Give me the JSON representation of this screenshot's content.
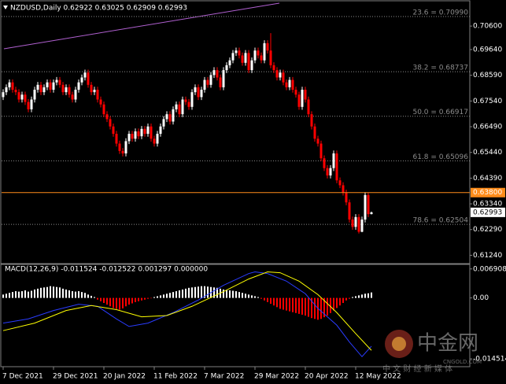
{
  "chart_data": [
    {
      "type": "candlestick",
      "title": "NZDUSD,Daily 0.62922 0.63025 0.62909 0.62993",
      "categories": [
        "7 Dec 2021",
        null,
        null,
        null,
        null,
        null,
        null,
        null,
        null,
        null,
        null,
        null,
        null,
        null,
        null,
        null,
        "29 Dec 2021",
        null,
        null,
        null,
        null,
        null,
        null,
        null,
        null,
        null,
        null,
        null,
        null,
        null,
        null,
        null,
        "20 Jan 2022",
        null,
        null,
        null,
        null,
        null,
        null,
        null,
        null,
        null,
        null,
        null,
        null,
        null,
        null,
        null,
        "11 Feb 2022",
        null,
        null,
        null,
        null,
        null,
        null,
        null,
        null,
        null,
        null,
        null,
        null,
        null,
        null,
        null,
        "7 Mar 2022",
        null,
        null,
        null,
        null,
        null,
        null,
        null,
        null,
        null,
        null,
        null,
        null,
        null,
        null,
        null,
        "29 Mar 2022",
        null,
        null,
        null,
        null,
        null,
        null,
        null,
        null,
        null,
        null,
        null,
        null,
        null,
        null,
        null,
        "20 Apr 2022",
        null,
        null,
        null,
        null,
        null,
        null,
        null,
        null,
        null,
        null,
        null,
        null,
        null,
        null,
        null,
        "12 May 2022",
        null,
        null,
        null,
        null,
        null
      ],
      "open": [
        0.677,
        0.679,
        0.681,
        0.683,
        0.68,
        0.679,
        0.676,
        0.678,
        0.675,
        0.672,
        0.676,
        0.68,
        0.682,
        0.679,
        0.681,
        0.683,
        0.68,
        0.683,
        0.684,
        0.682,
        0.679,
        0.681,
        0.678,
        0.676,
        0.68,
        0.683,
        0.685,
        0.687,
        0.682,
        0.679,
        0.68,
        0.676,
        0.674,
        0.67,
        0.668,
        0.665,
        0.662,
        0.658,
        0.655,
        0.654,
        0.659,
        0.662,
        0.66,
        0.663,
        0.661,
        0.664,
        0.662,
        0.665,
        0.66,
        0.658,
        0.662,
        0.665,
        0.668,
        0.67,
        0.667,
        0.672,
        0.674,
        0.67,
        0.676,
        0.675,
        0.673,
        0.679,
        0.681,
        0.677,
        0.68,
        0.684,
        0.682,
        0.686,
        0.688,
        0.685,
        0.681,
        0.688,
        0.69,
        0.692,
        0.695,
        0.696,
        0.694,
        0.691,
        0.695,
        0.688,
        0.692,
        0.696,
        0.694,
        0.692,
        0.699,
        0.696,
        0.69,
        0.688,
        0.685,
        0.687,
        0.683,
        0.681,
        0.684,
        0.68,
        0.678,
        0.673,
        0.68,
        0.676,
        0.67,
        0.665,
        0.66,
        0.658,
        0.652,
        0.648,
        0.645,
        0.648,
        0.654,
        0.643,
        0.641,
        0.638,
        0.634,
        0.627,
        0.624,
        0.628,
        0.622,
        0.627,
        0.637,
        0.62922
      ],
      "high": [
        0.6802,
        0.6822,
        0.6842,
        0.6842,
        0.6812,
        0.6802,
        0.6792,
        0.6792,
        0.6762,
        0.6772,
        0.6812,
        0.6832,
        0.6832,
        0.6822,
        0.6842,
        0.6842,
        0.6842,
        0.6852,
        0.6852,
        0.6832,
        0.6822,
        0.6822,
        0.6792,
        0.6812,
        0.6842,
        0.6862,
        0.6882,
        0.6882,
        0.6832,
        0.6812,
        0.6812,
        0.6772,
        0.6752,
        0.6712,
        0.6692,
        0.6662,
        0.6632,
        0.6592,
        0.6562,
        0.6602,
        0.6632,
        0.6632,
        0.6642,
        0.6642,
        0.6652,
        0.6652,
        0.6662,
        0.6662,
        0.6612,
        0.6632,
        0.6662,
        0.6692,
        0.6712,
        0.6712,
        0.6732,
        0.6752,
        0.6752,
        0.6772,
        0.6772,
        0.6762,
        0.6802,
        0.6822,
        0.6822,
        0.6812,
        0.6852,
        0.6852,
        0.6872,
        0.6892,
        0.6892,
        0.6862,
        0.6892,
        0.6912,
        0.6932,
        0.6962,
        0.6972,
        0.6972,
        0.6952,
        0.6962,
        0.6962,
        0.6932,
        0.6972,
        0.6972,
        0.6952,
        0.7002,
        0.7002,
        0.7031,
        0.6912,
        0.6892,
        0.6882,
        0.6882,
        0.6842,
        0.6852,
        0.6852,
        0.6812,
        0.6792,
        0.6812,
        0.6812,
        0.6772,
        0.6712,
        0.6662,
        0.6612,
        0.6592,
        0.6532,
        0.6492,
        0.6492,
        0.6552,
        0.6552,
        0.6442,
        0.6422,
        0.6392,
        0.6352,
        0.6282,
        0.6292,
        0.6292,
        0.6282,
        0.6382,
        0.638,
        0.63025
      ],
      "low": [
        0.6758,
        0.6778,
        0.6798,
        0.6788,
        0.6778,
        0.6748,
        0.6748,
        0.6738,
        0.6708,
        0.6708,
        0.6748,
        0.6788,
        0.6778,
        0.6778,
        0.6798,
        0.6788,
        0.6788,
        0.6818,
        0.6808,
        0.6778,
        0.6778,
        0.6768,
        0.6748,
        0.6748,
        0.6788,
        0.6818,
        0.6838,
        0.6808,
        0.6778,
        0.6778,
        0.6748,
        0.6728,
        0.6688,
        0.6668,
        0.6638,
        0.6608,
        0.6568,
        0.6538,
        0.6528,
        0.6528,
        0.6578,
        0.6588,
        0.6588,
        0.6598,
        0.6598,
        0.6608,
        0.6608,
        0.6588,
        0.6568,
        0.6568,
        0.6608,
        0.6638,
        0.6668,
        0.6658,
        0.6658,
        0.6708,
        0.6688,
        0.6688,
        0.6738,
        0.6718,
        0.6718,
        0.6778,
        0.6758,
        0.6758,
        0.6788,
        0.6808,
        0.6808,
        0.6848,
        0.6838,
        0.6798,
        0.6798,
        0.6868,
        0.6888,
        0.6908,
        0.6938,
        0.6928,
        0.6898,
        0.6898,
        0.6868,
        0.6868,
        0.6908,
        0.6928,
        0.6908,
        0.6908,
        0.6948,
        0.6888,
        0.6868,
        0.6838,
        0.6838,
        0.6818,
        0.6798,
        0.6798,
        0.6788,
        0.6768,
        0.6718,
        0.6718,
        0.6748,
        0.6688,
        0.6638,
        0.6588,
        0.6568,
        0.6508,
        0.6468,
        0.6438,
        0.6438,
        0.6468,
        0.6418,
        0.6398,
        0.6368,
        0.6328,
        0.6258,
        0.6228,
        0.6228,
        0.6213,
        0.6218,
        0.6258,
        0.628,
        0.62909
      ],
      "close": [
        0.679,
        0.681,
        0.683,
        0.68,
        0.679,
        0.676,
        0.678,
        0.675,
        0.672,
        0.676,
        0.68,
        0.682,
        0.679,
        0.681,
        0.683,
        0.68,
        0.683,
        0.684,
        0.682,
        0.679,
        0.681,
        0.678,
        0.676,
        0.68,
        0.683,
        0.685,
        0.687,
        0.682,
        0.679,
        0.68,
        0.676,
        0.674,
        0.67,
        0.668,
        0.665,
        0.662,
        0.658,
        0.655,
        0.654,
        0.659,
        0.662,
        0.66,
        0.663,
        0.661,
        0.664,
        0.662,
        0.665,
        0.66,
        0.658,
        0.662,
        0.665,
        0.668,
        0.67,
        0.667,
        0.672,
        0.674,
        0.67,
        0.676,
        0.675,
        0.673,
        0.679,
        0.681,
        0.677,
        0.68,
        0.684,
        0.682,
        0.686,
        0.688,
        0.685,
        0.681,
        0.688,
        0.69,
        0.692,
        0.695,
        0.696,
        0.694,
        0.691,
        0.695,
        0.688,
        0.692,
        0.696,
        0.694,
        0.692,
        0.699,
        0.696,
        0.69,
        0.688,
        0.685,
        0.687,
        0.683,
        0.681,
        0.684,
        0.68,
        0.678,
        0.673,
        0.68,
        0.676,
        0.67,
        0.665,
        0.66,
        0.658,
        0.652,
        0.648,
        0.645,
        0.648,
        0.654,
        0.643,
        0.641,
        0.638,
        0.634,
        0.627,
        0.624,
        0.628,
        0.622,
        0.627,
        0.637,
        0.6292,
        0.62993
      ],
      "up_color": "#ffffff",
      "down_color": "#ff0000",
      "ylim": [
        0.609,
        0.716
      ],
      "yticks": [
        {
          "value": 0.706,
          "label": "0.70600"
        },
        {
          "value": 0.6964,
          "label": "0.69640"
        },
        {
          "value": 0.6859,
          "label": "0.68590"
        },
        {
          "value": 0.6754,
          "label": "0.67540"
        },
        {
          "value": 0.6649,
          "label": "0.66490"
        },
        {
          "value": 0.6544,
          "label": "0.65440"
        },
        {
          "value": 0.6439,
          "label": "0.64390"
        },
        {
          "value": 0.6334,
          "label": "0.63340"
        },
        {
          "value": 0.6229,
          "label": "0.62290"
        },
        {
          "value": 0.6124,
          "label": "0.61240"
        }
      ],
      "fib_levels": [
        {
          "value": 0.7099,
          "label": "23.6 = 0.70990"
        },
        {
          "value": 0.68737,
          "label": "38.2 = 0.68737"
        },
        {
          "value": 0.66917,
          "label": "50.0 = 0.66917"
        },
        {
          "value": 0.65096,
          "label": "61.8 = 0.65096"
        },
        {
          "value": 0.62504,
          "label": "78.6 = 0.62504"
        }
      ],
      "fib_color": "#8c8c8c",
      "price_lines": [
        {
          "value": 0.638,
          "label": "0.63800",
          "color": "#ff8c1a",
          "text_color": "#ffffff",
          "line": true
        },
        {
          "value": 0.62993,
          "label": "0.62993",
          "color": "#ffffff",
          "text_color": "#000000",
          "line": false
        }
      ]
    },
    {
      "type": "macd",
      "title": "MACD(12,26,9) -0.011524 -0.012522 0.001297 0.000000",
      "ylim": [
        -0.0162,
        0.0078
      ],
      "yticks": [
        {
          "value": 0.006908,
          "label": "0.006908"
        },
        {
          "value": 0,
          "label": "0.00"
        },
        {
          "value": -0.014514,
          "label": "-0.014514"
        }
      ],
      "histogram": {
        "color": "#ffffff",
        "negative_color": "#ff0000",
        "values": [
          0.0008,
          0.001,
          0.0012,
          0.0014,
          0.0016,
          0.0015,
          0.0016,
          0.0018,
          0.0015,
          0.0017,
          0.002,
          0.0022,
          0.0024,
          0.0025,
          0.0026,
          0.0028,
          0.0027,
          0.0026,
          0.0025,
          0.0022,
          0.002,
          0.0018,
          0.0016,
          0.0015,
          0.0016,
          0.0014,
          0.0012,
          0.0008,
          0.0005,
          0.0002,
          -0.0004,
          -0.0008,
          -0.0012,
          -0.0016,
          -0.002,
          -0.0024,
          -0.0026,
          -0.0028,
          -0.0025,
          -0.002,
          -0.0016,
          -0.0013,
          -0.001,
          -0.0008,
          -0.0006,
          -0.0004,
          -0.0002,
          -0.0001,
          0.0002,
          0.0004,
          0.0006,
          0.0008,
          0.001,
          0.0012,
          0.0014,
          0.0016,
          0.0018,
          0.002,
          0.0022,
          0.0024,
          0.0025,
          0.0026,
          0.0027,
          0.0028,
          0.0028,
          0.0027,
          0.0026,
          0.0025,
          0.0024,
          0.0022,
          0.002,
          0.0019,
          0.0018,
          0.0017,
          0.0016,
          0.0014,
          0.0012,
          0.001,
          0.0008,
          0.0006,
          0.0004,
          0.0002,
          -0.0002,
          -0.0006,
          -0.001,
          -0.0014,
          -0.0018,
          -0.0022,
          -0.0026,
          -0.0028,
          -0.003,
          -0.0032,
          -0.0034,
          -0.0036,
          -0.0038,
          -0.004,
          -0.0042,
          -0.0045,
          -0.0048,
          -0.005,
          -0.0052,
          -0.005,
          -0.0046,
          -0.0042,
          -0.0036,
          -0.003,
          -0.0024,
          -0.0018,
          -0.0012,
          -0.0006,
          -0.0002,
          0.0002,
          0.0004,
          0.0006,
          0.0008,
          0.001,
          0.0011,
          0.0013
        ]
      },
      "series": [
        {
          "color": "#2a3cff",
          "x": [
            0,
            8,
            16,
            24,
            30,
            36,
            40,
            46,
            54,
            62,
            70,
            78,
            80,
            84,
            90,
            96,
            100,
            106,
            110,
            114,
            117
          ],
          "values": [
            -0.006,
            -0.005,
            -0.003,
            -0.0015,
            -0.002,
            -0.005,
            -0.0068,
            -0.006,
            -0.0035,
            -0.0005,
            0.003,
            0.0058,
            0.0062,
            0.0058,
            0.004,
            0.001,
            -0.0025,
            -0.0065,
            -0.0105,
            -0.014,
            -0.0115
          ]
        },
        {
          "color": "#ffff00",
          "x": [
            0,
            10,
            20,
            28,
            36,
            44,
            52,
            60,
            70,
            78,
            84,
            88,
            94,
            100,
            106,
            112,
            117
          ],
          "values": [
            -0.0078,
            -0.006,
            -0.003,
            -0.0018,
            -0.0028,
            -0.0045,
            -0.0042,
            -0.002,
            0.0015,
            0.0045,
            0.0062,
            0.006,
            0.004,
            0.0008,
            -0.0035,
            -0.0085,
            -0.0125
          ]
        }
      ]
    }
  ],
  "watermark": {
    "brand": "中金网",
    "site": "CNGOLD.COM",
    "tagline": "中 文 财 经 新 媒 体"
  }
}
